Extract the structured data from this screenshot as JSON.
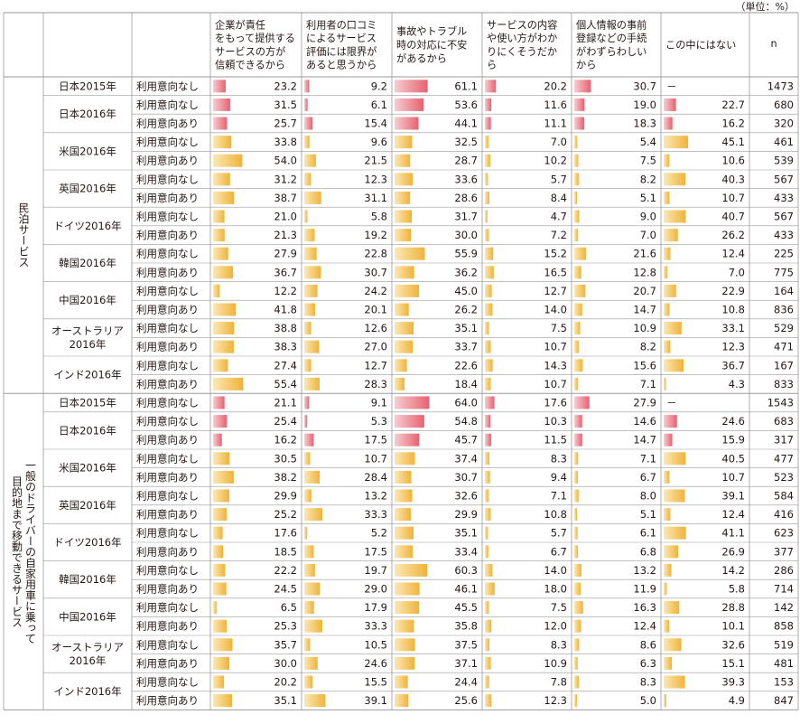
{
  "unit_label": "（単位：%）",
  "colors": {
    "red_gradient": [
      "#f7cdd2",
      "#e8616f"
    ],
    "yellow_gradient": [
      "#fbe8b5",
      "#f0b33a"
    ],
    "grid": "#9a9a9a"
  },
  "chart_data": {
    "type": "table",
    "columns": [
      [
        "企業が責任",
        "をもって提供する",
        "サービスの方が",
        "信頼できるから"
      ],
      [
        "利用者の口コミ",
        "によるサービス",
        "評価には限界が",
        "あると思うから"
      ],
      [
        "事故やトラブル",
        "時の対応に不安",
        "があるから"
      ],
      [
        "サービスの内容",
        "や使い方がわか",
        "りにくそうだか",
        "ら"
      ],
      [
        "個人情報の事前",
        "登録などの手続",
        "がわずらわしい",
        "から"
      ],
      [
        "この中にはない"
      ],
      [
        "n"
      ]
    ],
    "groups": [
      {
        "label": "民泊サービス",
        "rows": [
          {
            "country": "日本2015年",
            "intent": "利用意向なし",
            "values": [
              23.2,
              9.2,
              61.1,
              20.2,
              30.7,
              null
            ],
            "other_label": "－",
            "n": "1473",
            "highlight": true
          },
          {
            "country": "日本2016年",
            "intent": "利用意向なし",
            "values": [
              31.5,
              6.1,
              53.6,
              11.6,
              19.0,
              22.7
            ],
            "n": "680",
            "highlight": true
          },
          {
            "country": "",
            "intent": "利用意向あり",
            "values": [
              25.7,
              15.4,
              44.1,
              11.1,
              18.3,
              16.2
            ],
            "n": "320",
            "highlight": true
          },
          {
            "country": "米国2016年",
            "intent": "利用意向なし",
            "values": [
              33.8,
              9.6,
              32.5,
              7.0,
              5.4,
              45.1
            ],
            "n": "461"
          },
          {
            "country": "",
            "intent": "利用意向あり",
            "values": [
              54.0,
              21.5,
              28.7,
              10.2,
              7.5,
              10.6
            ],
            "n": "539"
          },
          {
            "country": "英国2016年",
            "intent": "利用意向なし",
            "values": [
              31.2,
              12.3,
              33.6,
              5.7,
              8.2,
              40.3
            ],
            "n": "567"
          },
          {
            "country": "",
            "intent": "利用意向あり",
            "values": [
              38.7,
              31.1,
              28.6,
              8.4,
              5.1,
              10.7
            ],
            "n": "433"
          },
          {
            "country": "ドイツ2016年",
            "intent": "利用意向なし",
            "values": [
              21.0,
              5.8,
              31.7,
              4.7,
              9.0,
              40.7
            ],
            "n": "567"
          },
          {
            "country": "",
            "intent": "利用意向あり",
            "values": [
              21.3,
              19.2,
              30.0,
              7.2,
              7.0,
              26.2
            ],
            "n": "433"
          },
          {
            "country": "韓国2016年",
            "intent": "利用意向なし",
            "values": [
              27.9,
              22.8,
              55.9,
              15.2,
              21.6,
              12.4
            ],
            "n": "225"
          },
          {
            "country": "",
            "intent": "利用意向あり",
            "values": [
              36.7,
              30.7,
              36.2,
              16.5,
              12.8,
              7.0
            ],
            "n": "775"
          },
          {
            "country": "中国2016年",
            "intent": "利用意向なし",
            "values": [
              12.2,
              24.2,
              45.0,
              12.7,
              20.7,
              22.9
            ],
            "n": "164"
          },
          {
            "country": "",
            "intent": "利用意向あり",
            "values": [
              41.8,
              20.1,
              26.2,
              14.0,
              14.7,
              10.8
            ],
            "n": "836"
          },
          {
            "country": "オーストラリア\n2016年",
            "intent": "利用意向なし",
            "values": [
              38.8,
              12.6,
              35.1,
              7.5,
              10.9,
              33.1
            ],
            "n": "529"
          },
          {
            "country": "",
            "intent": "利用意向あり",
            "values": [
              38.3,
              27.0,
              33.7,
              10.7,
              8.2,
              12.3
            ],
            "n": "471"
          },
          {
            "country": "インド2016年",
            "intent": "利用意向なし",
            "values": [
              27.4,
              12.7,
              22.6,
              14.3,
              15.6,
              36.7
            ],
            "n": "167"
          },
          {
            "country": "",
            "intent": "利用意向あり",
            "values": [
              55.4,
              28.3,
              18.4,
              10.7,
              7.1,
              4.3
            ],
            "n": "833"
          }
        ]
      },
      {
        "label": "一般のドライバーの自家用車に乗って\n目的地まで移動できるサービス",
        "rows": [
          {
            "country": "日本2015年",
            "intent": "利用意向なし",
            "values": [
              21.1,
              9.1,
              64.0,
              17.6,
              27.9,
              null
            ],
            "other_label": "－",
            "n": "1543",
            "highlight": true
          },
          {
            "country": "日本2016年",
            "intent": "利用意向なし",
            "values": [
              25.4,
              5.3,
              54.8,
              10.3,
              14.6,
              24.6
            ],
            "n": "683",
            "highlight": true
          },
          {
            "country": "",
            "intent": "利用意向あり",
            "values": [
              16.2,
              17.5,
              45.7,
              11.5,
              14.7,
              15.9
            ],
            "n": "317",
            "highlight": true
          },
          {
            "country": "米国2016年",
            "intent": "利用意向なし",
            "values": [
              30.5,
              10.7,
              37.4,
              8.3,
              7.1,
              40.5
            ],
            "n": "477"
          },
          {
            "country": "",
            "intent": "利用意向あり",
            "values": [
              38.2,
              28.4,
              30.7,
              9.4,
              6.7,
              10.7
            ],
            "n": "523"
          },
          {
            "country": "英国2016年",
            "intent": "利用意向なし",
            "values": [
              29.9,
              13.2,
              32.6,
              7.1,
              8.0,
              39.1
            ],
            "n": "584"
          },
          {
            "country": "",
            "intent": "利用意向あり",
            "values": [
              25.2,
              33.3,
              29.9,
              10.8,
              5.1,
              12.4
            ],
            "n": "416"
          },
          {
            "country": "ドイツ2016年",
            "intent": "利用意向なし",
            "values": [
              17.6,
              5.2,
              35.1,
              5.7,
              6.1,
              41.1
            ],
            "n": "623"
          },
          {
            "country": "",
            "intent": "利用意向あり",
            "values": [
              18.5,
              17.5,
              33.4,
              6.7,
              6.8,
              26.9
            ],
            "n": "377"
          },
          {
            "country": "韓国2016年",
            "intent": "利用意向なし",
            "values": [
              22.2,
              19.7,
              60.3,
              14.0,
              13.2,
              14.2
            ],
            "n": "286"
          },
          {
            "country": "",
            "intent": "利用意向あり",
            "values": [
              24.5,
              29.0,
              46.1,
              18.0,
              11.9,
              5.8
            ],
            "n": "714"
          },
          {
            "country": "中国2016年",
            "intent": "利用意向なし",
            "values": [
              6.5,
              17.9,
              45.5,
              7.5,
              16.3,
              28.8
            ],
            "n": "142"
          },
          {
            "country": "",
            "intent": "利用意向あり",
            "values": [
              25.3,
              33.3,
              35.8,
              12.0,
              12.4,
              10.1
            ],
            "n": "858"
          },
          {
            "country": "オーストラリア\n2016年",
            "intent": "利用意向なし",
            "values": [
              35.7,
              10.5,
              37.5,
              8.3,
              8.6,
              32.6
            ],
            "n": "519"
          },
          {
            "country": "",
            "intent": "利用意向あり",
            "values": [
              30.0,
              24.6,
              37.1,
              10.9,
              6.3,
              15.1
            ],
            "n": "481"
          },
          {
            "country": "インド2016年",
            "intent": "利用意向なし",
            "values": [
              20.2,
              15.5,
              24.4,
              7.8,
              8.3,
              39.3
            ],
            "n": "153"
          },
          {
            "country": "",
            "intent": "利用意向あり",
            "values": [
              35.1,
              39.1,
              25.6,
              12.3,
              5.0,
              4.9
            ],
            "n": "847"
          }
        ]
      }
    ]
  }
}
